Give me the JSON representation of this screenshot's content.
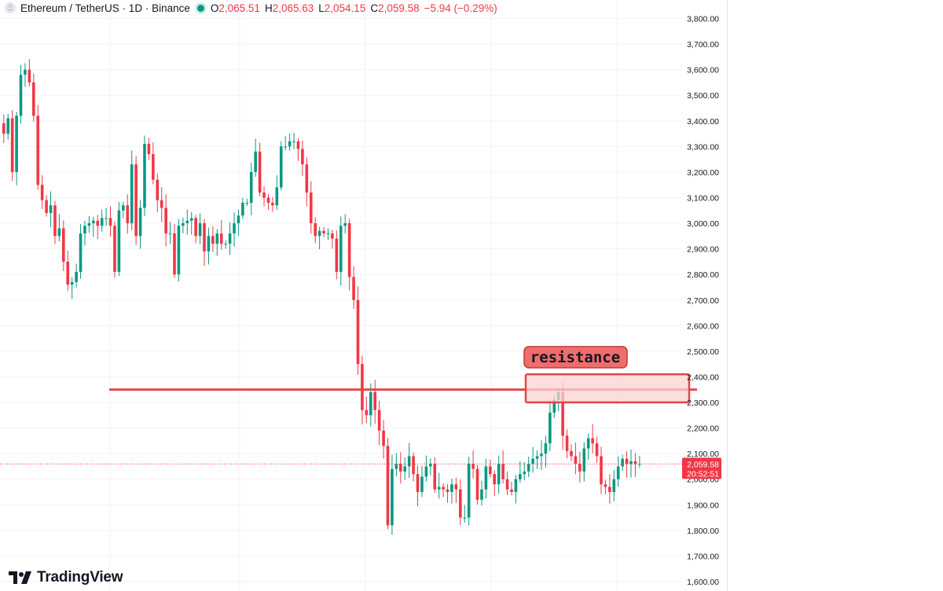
{
  "header": {
    "symbol": "Ethereum / TetherUS · 1D · Binance",
    "coin_icon": "ethereum-icon",
    "open_label": "O",
    "open_value": "2,065.51",
    "high_label": "H",
    "high_value": "2,065.63",
    "low_label": "L",
    "low_value": "2,054.15",
    "close_label": "C",
    "close_value": "2,059.58",
    "change": "−5.94 (−0.29%)"
  },
  "price_tag": {
    "price": "2,059.58",
    "countdown": "20:52:51"
  },
  "annotation": {
    "label": "resistance"
  },
  "brand": {
    "name": "TradingView",
    "logo_icon": "tradingview-logo-icon"
  },
  "colors": {
    "up": "#089981",
    "down": "#f23645",
    "annotation": "#e04848",
    "annotation_fill": "#fbd3d3"
  },
  "chart_data": {
    "type": "candlestick",
    "y_axis_labels": [
      "3,800.00",
      "3,700.00",
      "3,600.00",
      "3,500.00",
      "3,400.00",
      "3,300.00",
      "3,200.00",
      "3,100.00",
      "3,000.00",
      "2,900.00",
      "2,800.00",
      "2,700.00",
      "2,600.00",
      "2,500.00",
      "2,400.00",
      "2,300.00",
      "2,200.00",
      "2,100.00",
      "2,000.00",
      "1,900.00",
      "1,800.00",
      "1,700.00",
      "1,600.00"
    ],
    "y_ticks": [
      3800,
      3700,
      3600,
      3500,
      3400,
      3300,
      3200,
      3100,
      3000,
      2900,
      2800,
      2700,
      2600,
      2500,
      2400,
      2300,
      2200,
      2100,
      2000,
      1900,
      1800,
      1700,
      1600
    ],
    "ylim": [
      1600,
      3800
    ],
    "grid": true,
    "current_price": 2059.58,
    "resistance_line": 2350,
    "resistance_zone": [
      2300,
      2410
    ],
    "closes": [
      3350,
      3410,
      3200,
      3420,
      3580,
      3600,
      3550,
      3420,
      3150,
      3090,
      3040,
      3070,
      2950,
      2980,
      2850,
      2760,
      2770,
      2810,
      2960,
      2990,
      3000,
      3010,
      2990,
      3020,
      3020,
      2990,
      2810,
      3050,
      3070,
      3000,
      3230,
      2950,
      3060,
      3310,
      3270,
      3170,
      3090,
      3060,
      2960,
      2960,
      2800,
      2990,
      3000,
      3010,
      3020,
      2950,
      3000,
      2890,
      2950,
      2920,
      2960,
      2920,
      2920,
      2960,
      3000,
      3030,
      3080,
      3080,
      3200,
      3280,
      3120,
      3100,
      3080,
      3070,
      3140,
      3300,
      3300,
      3320,
      3320,
      3290,
      3230,
      3120,
      3000,
      2950,
      2970,
      2960,
      2960,
      2940,
      2810,
      2990,
      3000,
      2790,
      2700,
      2450,
      2270,
      2250,
      2340,
      2270,
      2190,
      2130,
      1820,
      2040,
      2060,
      2030,
      2050,
      2090,
      2020,
      1950,
      2010,
      2050,
      2060,
      1960,
      1970,
      1960,
      1950,
      1980,
      1960,
      1850,
      1850,
      2060,
      2040,
      1920,
      1960,
      2050,
      2020,
      1980,
      2060,
      2000,
      1960,
      1950,
      2000,
      2020,
      2030,
      2060,
      2080,
      2090,
      2100,
      2140,
      2260,
      2310,
      2340,
      2170,
      2110,
      2090,
      2060,
      2030,
      2120,
      2160,
      2140,
      2090,
      1980,
      1970,
      1950,
      2000,
      2050,
      2080,
      2060,
      2070,
      2060,
      2060
    ]
  }
}
